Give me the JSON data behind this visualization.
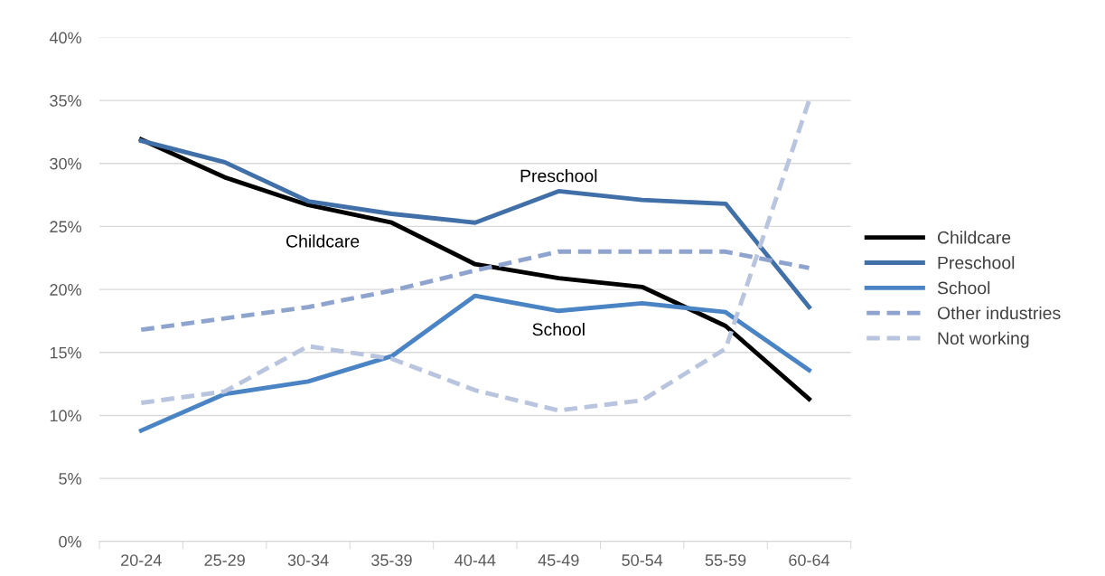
{
  "chart_data": {
    "type": "line",
    "categories": [
      "20-24",
      "25-29",
      "30-34",
      "35-39",
      "40-44",
      "45-49",
      "50-54",
      "55-59",
      "60-64"
    ],
    "series": [
      {
        "name": "Childcare",
        "color": "#000000",
        "line_style": "solid",
        "values": [
          31.9,
          28.9,
          26.7,
          25.3,
          22.0,
          20.9,
          20.2,
          17.1,
          11.3
        ]
      },
      {
        "name": "Preschool",
        "color": "#4170a8",
        "line_style": "solid",
        "values": [
          31.8,
          30.1,
          27.0,
          26.0,
          25.3,
          27.8,
          27.1,
          26.8,
          18.6
        ]
      },
      {
        "name": "School",
        "color": "#4a84c4",
        "line_style": "solid",
        "values": [
          8.8,
          11.7,
          12.7,
          14.7,
          19.5,
          18.3,
          18.9,
          18.2,
          13.6
        ]
      },
      {
        "name": "Other industries",
        "color": "#8ea4cf",
        "line_style": "dashed",
        "values": [
          16.8,
          17.7,
          18.6,
          19.9,
          21.5,
          23.0,
          23.0,
          23.0,
          21.7
        ]
      },
      {
        "name": "Not working",
        "color": "#b9c5de",
        "line_style": "dashed",
        "values": [
          11.0,
          11.9,
          15.5,
          14.5,
          12.0,
          10.4,
          11.2,
          15.3,
          35.0
        ]
      }
    ],
    "ylim": [
      0,
      40
    ],
    "yticks": [
      {
        "value": 0,
        "label": "0%"
      },
      {
        "value": 5,
        "label": "5%"
      },
      {
        "value": 10,
        "label": "10%"
      },
      {
        "value": 15,
        "label": "15%"
      },
      {
        "value": 20,
        "label": "20%"
      },
      {
        "value": 25,
        "label": "25%"
      },
      {
        "value": 30,
        "label": "30%"
      },
      {
        "value": 35,
        "label": "35%"
      },
      {
        "value": 40,
        "label": "40%"
      }
    ],
    "grid": "y",
    "legend": "right",
    "marker": "none",
    "annotations": [
      {
        "text": "Preschool",
        "x": "45-49",
        "y": 27.8
      },
      {
        "text": "Childcare",
        "x": "35-39",
        "y": 25.3
      },
      {
        "text": "School",
        "x": "45-49",
        "y": 18.3
      }
    ]
  }
}
